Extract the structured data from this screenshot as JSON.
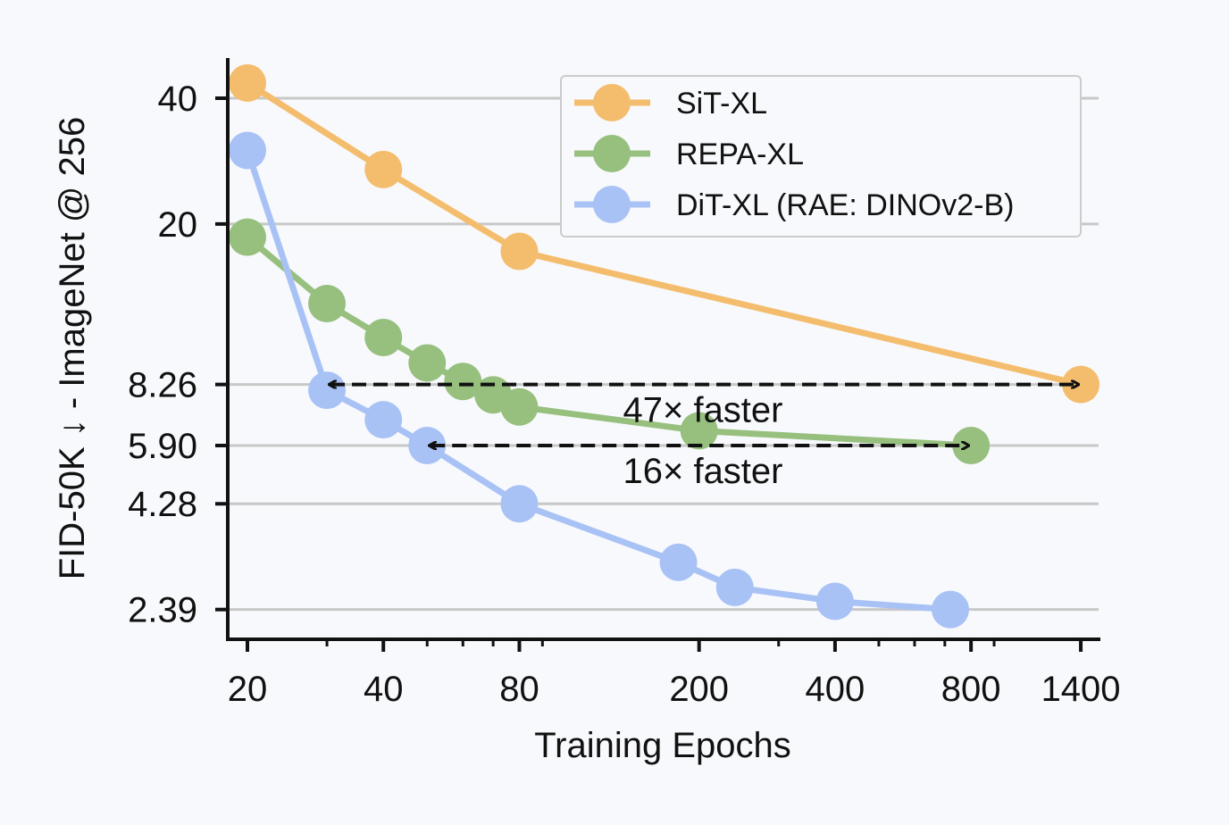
{
  "chart_data": {
    "type": "line",
    "title": "",
    "xlabel": "Training Epochs",
    "ylabel": "FID-50K ↓ - ImageNet @ 256",
    "xscale": "log",
    "yscale": "log",
    "xlim": [
      18.5,
      1500
    ],
    "ylim": [
      2.2,
      47
    ],
    "xticks": [
      20,
      40,
      80,
      200,
      400,
      800,
      1400
    ],
    "xtick_labels": [
      "20",
      "40",
      "80",
      "200",
      "400",
      "800",
      "1400"
    ],
    "x_minor_ticks": [
      30,
      50,
      60,
      70,
      90,
      300,
      500,
      600,
      700,
      900
    ],
    "yticks": [
      40,
      20,
      8.26,
      5.9,
      4.28,
      2.39
    ],
    "ytick_labels": [
      "40",
      "20",
      "8.26",
      "5.90",
      "4.28",
      "2.39"
    ],
    "grid": "horizontal at y ticks",
    "legend_position": "top-right",
    "series": [
      {
        "name": "SiT-XL",
        "color": "#f4bd6e",
        "x": [
          20,
          40,
          80,
          1400
        ],
        "y": [
          43.5,
          27,
          17.2,
          8.26
        ]
      },
      {
        "name": "REPA-XL",
        "color": "#97c07f",
        "x": [
          20,
          30,
          40,
          50,
          60,
          70,
          80,
          200,
          800
        ],
        "y": [
          18.6,
          12.9,
          10.7,
          9.3,
          8.4,
          7.8,
          7.3,
          6.4,
          5.9
        ]
      },
      {
        "name": "DiT-XL (RAE: DINOv2-B)",
        "color": "#a9c2f6",
        "x": [
          20,
          30,
          40,
          50,
          80,
          180,
          240,
          400,
          720
        ],
        "y": [
          30,
          8.0,
          6.8,
          5.9,
          4.28,
          3.1,
          2.7,
          2.5,
          2.39
        ]
      }
    ],
    "annotations": [
      {
        "text": "47× faster",
        "from": [
          30,
          8.26
        ],
        "to": [
          1400,
          8.26
        ]
      },
      {
        "text": "16× faster",
        "from": [
          50,
          5.9
        ],
        "to": [
          800,
          5.9
        ]
      }
    ]
  }
}
